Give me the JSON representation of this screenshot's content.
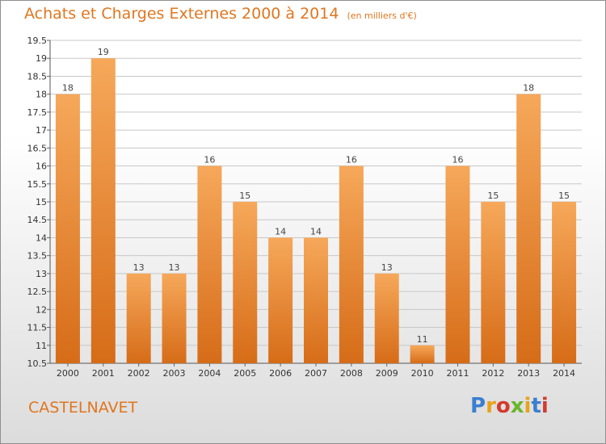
{
  "header": {
    "title": "Achats et Charges Externes 2000 à 2014",
    "subtitle": "(en milliers d'€)"
  },
  "footer": {
    "place": "CASTELNAVET",
    "logo": "Proxiti"
  },
  "colors": {
    "accent": "#e0761f",
    "bar_light": "#f6a85a",
    "bar_dark": "#d66c18",
    "grid": "#c8c8c8"
  },
  "chart_data": {
    "type": "bar",
    "categories": [
      "2000",
      "2001",
      "2002",
      "2003",
      "2004",
      "2005",
      "2006",
      "2007",
      "2008",
      "2009",
      "2010",
      "2011",
      "2012",
      "2013",
      "2014"
    ],
    "values": [
      18,
      19,
      13,
      13,
      16,
      15,
      14,
      14,
      16,
      13,
      11,
      16,
      15,
      18,
      15
    ],
    "ylim": [
      10.5,
      19.5
    ],
    "yticks": [
      10.5,
      11,
      11.5,
      12,
      12.5,
      13,
      13.5,
      14,
      14.5,
      15,
      15.5,
      16,
      16.5,
      17,
      17.5,
      18,
      18.5,
      19,
      19.5
    ],
    "grid": true,
    "title": "Achats et Charges Externes 2000 à 2014",
    "subtitle": "(en milliers d'€)"
  }
}
